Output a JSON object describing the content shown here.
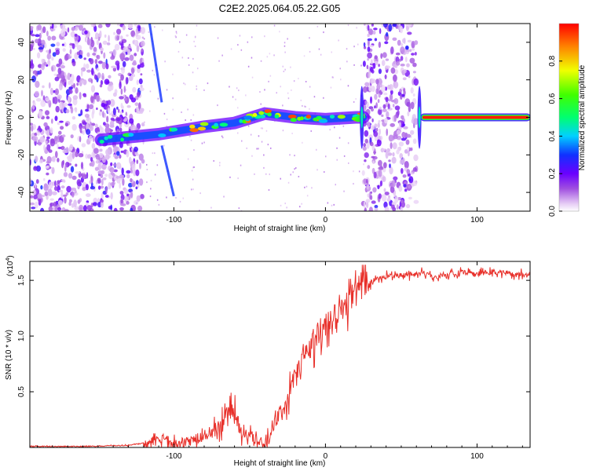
{
  "title": "C2E2.2025.064.05.22.G05",
  "colors": {
    "snr_line": "#e8302a",
    "axis": "#000000",
    "background": "#ffffff",
    "spectrogram_noise": "#7a2bd6",
    "ridge_core": "#e8302a"
  },
  "chart_data": [
    {
      "id": "spectrogram",
      "type": "heatmap",
      "title": "",
      "xlabel": "Height of straight line (km)",
      "ylabel": "Frequency (Hz)",
      "xlim": [
        -195,
        135
      ],
      "ylim": [
        -50,
        50
      ],
      "xticks": [
        -100,
        0,
        100
      ],
      "yticks": [
        -40,
        -20,
        0,
        20,
        40
      ],
      "xtick_labels": [
        "-100",
        "0",
        "100"
      ],
      "ytick_labels": [
        "-40",
        "-20",
        "0",
        "20",
        "40"
      ],
      "colorbar": {
        "label": "Normalized spectral amplitude",
        "range": [
          0.0,
          1.0
        ],
        "ticks": [
          0.0,
          0.2,
          0.4,
          0.6,
          0.8
        ],
        "tick_labels": [
          "0.0",
          "0.2",
          "0.4",
          "0.6",
          "0.8"
        ],
        "colormap": "rainbow (white-violet-blue-cyan-green-yellow-red)"
      },
      "features": [
        {
          "kind": "noise-region",
          "x": [
            -195,
            -120
          ],
          "y": [
            -50,
            50
          ],
          "level": 0.2
        },
        {
          "kind": "noise-region",
          "x": [
            25,
            60
          ],
          "y": [
            -50,
            50
          ],
          "level": 0.2
        },
        {
          "kind": "ridge",
          "x": [
            -148,
            -110,
            -80,
            -60,
            -40,
            -20,
            0,
            20,
            25
          ],
          "y": [
            -12,
            -9,
            -5,
            -3,
            2,
            0,
            -1,
            0,
            0
          ],
          "level": 0.6
        },
        {
          "kind": "ridge",
          "x": [
            65,
            133
          ],
          "y": [
            0,
            0
          ],
          "level": 1.0
        },
        {
          "kind": "trace",
          "x": [
            -116,
            -108
          ],
          "y": [
            50,
            8
          ],
          "level": 0.3
        },
        {
          "kind": "trace",
          "x": [
            -108,
            -100
          ],
          "y": [
            -15,
            -42
          ],
          "level": 0.3
        }
      ]
    },
    {
      "id": "snr",
      "type": "line",
      "title": "",
      "xlabel": "Height of straight line (km)",
      "ylabel": "SNR (10 * v/v)",
      "y_multiplier": "(x10^4)",
      "y_multiplier_base": "(x10",
      "y_multiplier_exp": "4",
      "xlim": [
        -195,
        135
      ],
      "ylim": [
        0,
        1.67
      ],
      "xticks": [
        -100,
        0,
        100
      ],
      "yticks": [
        0.5,
        1.0,
        1.5
      ],
      "xtick_labels": [
        "-100",
        "0",
        "100"
      ],
      "ytick_labels": [
        "0.5",
        "1.0",
        "1.5"
      ],
      "grid": false,
      "series": [
        {
          "x": [
            -195,
            -160,
            -130,
            -115,
            -110,
            -100,
            -90,
            -80,
            -75,
            -70,
            -65,
            -62,
            -58,
            -55,
            -50,
            -45,
            -40,
            -37,
            -35,
            -30,
            -25,
            -20,
            -15,
            -10,
            -5,
            0,
            5,
            10,
            15,
            20,
            25,
            30,
            35,
            40,
            50,
            60,
            65,
            70,
            80,
            90,
            100,
            110,
            120,
            135
          ],
          "y": [
            0.01,
            0.01,
            0.02,
            0.05,
            0.08,
            0.04,
            0.06,
            0.1,
            0.14,
            0.2,
            0.28,
            0.4,
            0.22,
            0.16,
            0.12,
            0.05,
            0.03,
            0.08,
            0.22,
            0.3,
            0.45,
            0.65,
            0.8,
            0.92,
            1.05,
            1.12,
            1.2,
            1.28,
            1.38,
            1.42,
            1.47,
            1.5,
            1.52,
            1.54,
            1.55,
            1.56,
            1.58,
            1.53,
            1.56,
            1.57,
            1.56,
            1.58,
            1.57,
            1.55
          ]
        }
      ]
    }
  ]
}
